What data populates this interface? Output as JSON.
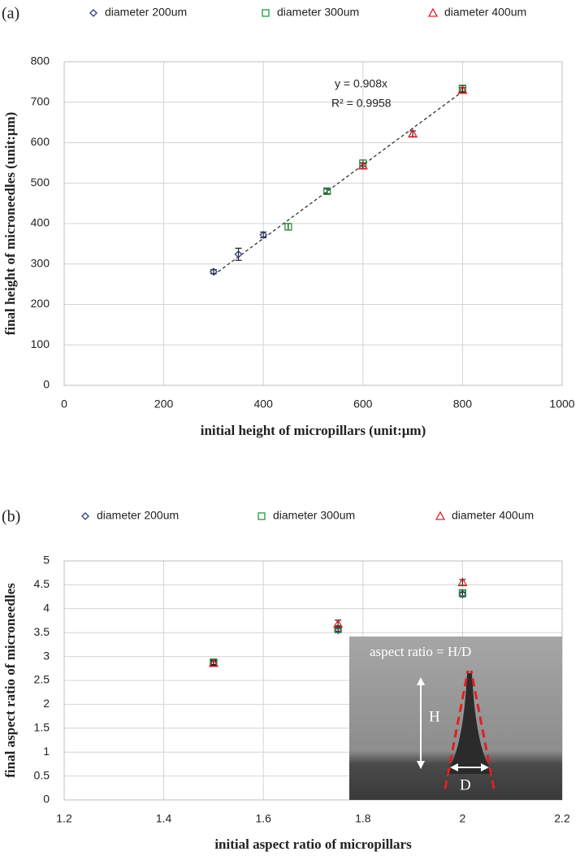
{
  "chart_data": [
    {
      "type": "scatter",
      "panel_label": "(a)",
      "x_label": "initial  height of micropillars  (unit:μm)",
      "y_label": "final height of microneedles  (unit:μm)",
      "xlim": [
        0,
        1000
      ],
      "xticks": [
        0,
        200,
        400,
        600,
        800,
        1000
      ],
      "ylim": [
        0,
        800
      ],
      "yticks": [
        0,
        100,
        200,
        300,
        400,
        500,
        600,
        700,
        800
      ],
      "grid": true,
      "legend": "top",
      "trendline": {
        "slope": 0.908,
        "label": "y = 0.908x",
        "r2_label": "R² = 0.9958"
      },
      "series": [
        {
          "name": "diameter 200um",
          "color": "#2e3d80",
          "marker": "diamond",
          "x": [
            300,
            350,
            400
          ],
          "values": [
            281,
            324,
            372
          ],
          "errors": [
            5,
            15,
            7
          ]
        },
        {
          "name": "diameter 300um",
          "color": "#1f9a3c",
          "marker": "square",
          "x": [
            450,
            528,
            600,
            800
          ],
          "values": [
            392,
            480,
            549,
            734
          ],
          "errors": [
            8,
            6,
            8,
            7
          ]
        },
        {
          "name": "diameter 400um",
          "color": "#e0242a",
          "marker": "triangle",
          "x": [
            600,
            700,
            800
          ],
          "values": [
            543,
            622,
            730
          ],
          "errors": [
            7,
            7,
            6
          ]
        }
      ]
    },
    {
      "type": "scatter",
      "panel_label": "(b)",
      "x_label": "initial  aspect ratio  of micropillars",
      "y_label": "final  aspect ratio  of microneedles",
      "xlim": [
        1.2,
        2.2
      ],
      "xticks": [
        1.2,
        1.4,
        1.6,
        1.8,
        2,
        2.2
      ],
      "ylim": [
        0,
        5
      ],
      "yticks": [
        0,
        0.5,
        1,
        1.5,
        2,
        2.5,
        3,
        3.5,
        4,
        4.5,
        5
      ],
      "grid": true,
      "legend": "top",
      "inset": {
        "title": "aspect ratio = H/D",
        "height_label": "H",
        "diameter_label": "D"
      },
      "series": [
        {
          "name": "diameter 200um",
          "color": "#2e3d80",
          "marker": "diamond",
          "x": [
            1.5,
            1.75,
            2
          ],
          "values": [
            2.87,
            3.55,
            4.3
          ],
          "errors": [
            0.05,
            0.05,
            0.05
          ]
        },
        {
          "name": "diameter 300um",
          "color": "#1f9a3c",
          "marker": "square",
          "x": [
            1.5,
            1.75,
            2
          ],
          "values": [
            2.88,
            3.58,
            4.33
          ],
          "errors": [
            0.05,
            0.05,
            0.06
          ]
        },
        {
          "name": "diameter 400um",
          "color": "#e0242a",
          "marker": "triangle",
          "x": [
            1.5,
            1.75,
            2
          ],
          "values": [
            2.86,
            3.68,
            4.55
          ],
          "errors": [
            0.05,
            0.08,
            0.06
          ]
        }
      ]
    }
  ]
}
